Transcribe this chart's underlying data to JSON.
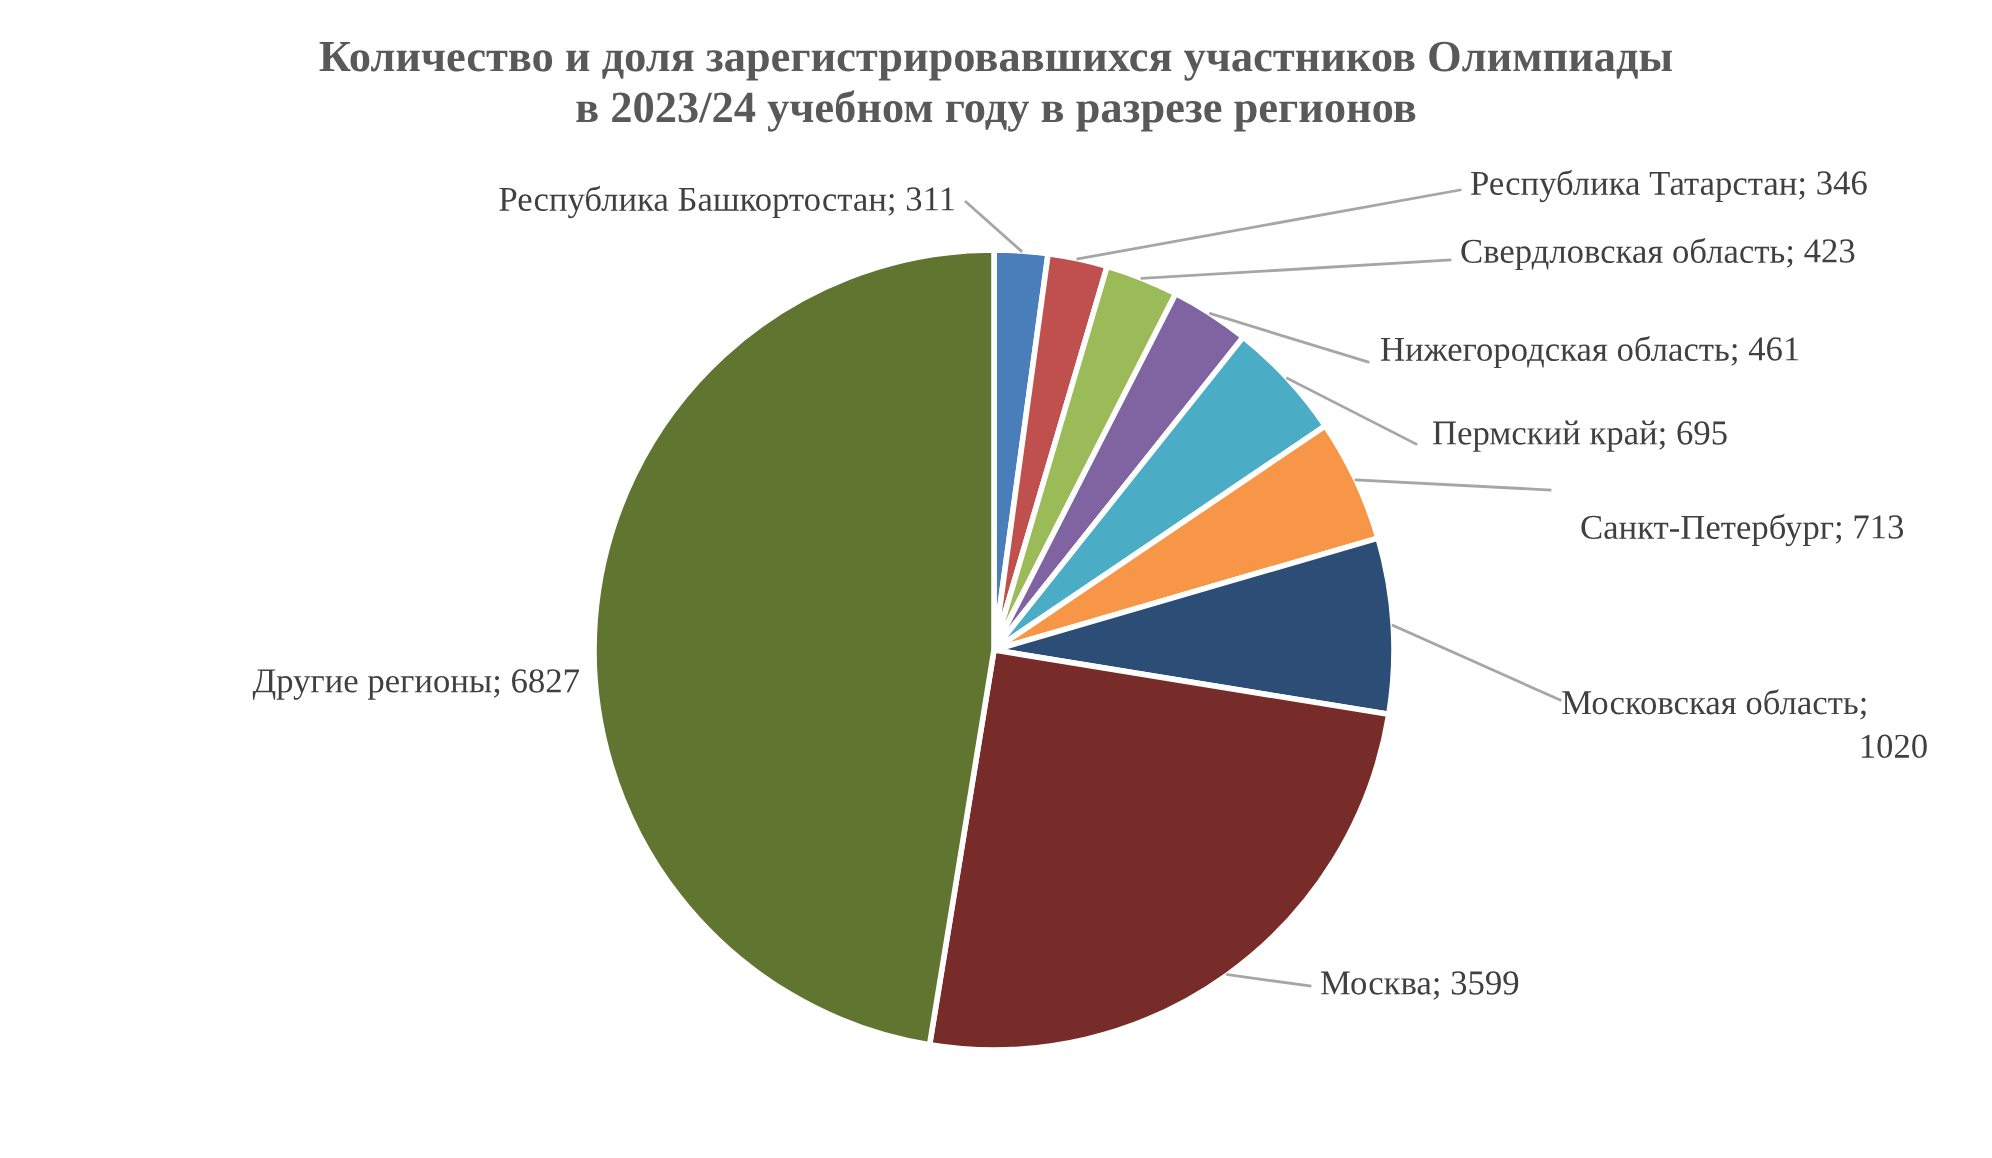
{
  "chart_data": {
    "type": "pie",
    "title": "Количество и доля зарегистрировавшихся участников Олимпиады\nв 2023/24 учебном году в разрезе регионов",
    "categories": [
      "Республика Башкортостан",
      "Республика Татарстан",
      "Свердловская область",
      "Нижегородская область",
      "Пермский край",
      "Санкт-Петербург",
      "Московская область",
      "Москва",
      "Другие регионы"
    ],
    "values": [
      311,
      346,
      423,
      461,
      695,
      713,
      1020,
      3599,
      6827
    ],
    "colors": [
      "#4a7ebb",
      "#c0504d",
      "#9bbb59",
      "#8064a2",
      "#4bacc6",
      "#f79646",
      "#2c4d75",
      "#772c2a",
      "#5f7530"
    ],
    "value_labels": [
      "; 311",
      "; 346",
      "; 423",
      "; 461",
      "; 695",
      "; 713",
      ";\n1020",
      "; 3599",
      "; 6827"
    ]
  }
}
